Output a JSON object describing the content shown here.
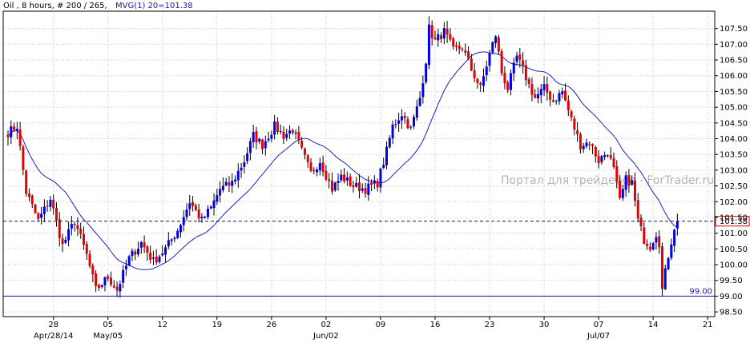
{
  "header": {
    "info": "Oil , 8 hours, # 200 / 265,",
    "mvg": "MVG(1) 20=101.38"
  },
  "watermark": "Портал для трейдеров - ForTrader.ru",
  "colors": {
    "up": "#0000e6",
    "down": "#e60000",
    "wick": "#000000",
    "ma": "#2020c0",
    "grid": "#c8c8c8",
    "current_label_border": "#e60000",
    "level_line": "#1a1aa6"
  },
  "chart_data": {
    "type": "candlestick",
    "y_ticks": [
      "98.50",
      "99.00",
      "99.50",
      "100.00",
      "100.50",
      "101.00",
      "101.50",
      "102.00",
      "102.50",
      "103.00",
      "103.50",
      "104.00",
      "104.50",
      "105.00",
      "105.50",
      "106.00",
      "106.50",
      "107.00",
      "107.50"
    ],
    "ylim": [
      98.35,
      108.05
    ],
    "x_ticks": [
      {
        "label": "28",
        "bar": 15
      },
      {
        "label": "05",
        "bar": 33
      },
      {
        "label": "12",
        "bar": 51
      },
      {
        "label": "19",
        "bar": 69
      },
      {
        "label": "26",
        "bar": 87
      },
      {
        "label": "02",
        "bar": 105
      },
      {
        "label": "09",
        "bar": 123
      },
      {
        "label": "16",
        "bar": 141
      },
      {
        "label": "23",
        "bar": 159
      },
      {
        "label": "30",
        "bar": 177
      },
      {
        "label": "07",
        "bar": 195
      },
      {
        "label": "14",
        "bar": 213
      },
      {
        "label": "21",
        "bar": 231
      }
    ],
    "x_months": [
      {
        "label": "Apr/28/14",
        "bar": 15
      },
      {
        "label": "May/05",
        "bar": 33
      },
      {
        "label": "Jun/02",
        "bar": 105
      },
      {
        "label": "Jul/07",
        "bar": 195
      }
    ],
    "bar_count": 233,
    "current_value": "101.38",
    "horizontal_level": {
      "value": 99.0,
      "label": "99.00"
    },
    "ma_period": 20,
    "waypoints": [
      [
        0,
        104.2
      ],
      [
        3,
        104.4
      ],
      [
        6,
        102.3
      ],
      [
        10,
        101.4
      ],
      [
        14,
        102.1
      ],
      [
        18,
        100.6
      ],
      [
        22,
        101.4
      ],
      [
        26,
        100.3
      ],
      [
        29,
        99.2
      ],
      [
        33,
        99.6
      ],
      [
        36,
        99.2
      ],
      [
        40,
        100.2
      ],
      [
        44,
        100.7
      ],
      [
        48,
        100.1
      ],
      [
        52,
        100.5
      ],
      [
        56,
        101.1
      ],
      [
        60,
        102.0
      ],
      [
        64,
        101.4
      ],
      [
        67,
        101.8
      ],
      [
        70,
        102.4
      ],
      [
        74,
        102.6
      ],
      [
        78,
        103.3
      ],
      [
        81,
        104.1
      ],
      [
        84,
        103.8
      ],
      [
        88,
        104.4
      ],
      [
        91,
        104.1
      ],
      [
        94,
        104.3
      ],
      [
        97,
        103.6
      ],
      [
        100,
        102.9
      ],
      [
        103,
        103.3
      ],
      [
        107,
        102.4
      ],
      [
        110,
        102.8
      ],
      [
        114,
        102.5
      ],
      [
        118,
        102.4
      ],
      [
        122,
        102.6
      ],
      [
        125,
        103.6
      ],
      [
        127,
        104.4
      ],
      [
        130,
        104.8
      ],
      [
        133,
        104.3
      ],
      [
        136,
        105.3
      ],
      [
        138,
        106.5
      ],
      [
        139,
        107.5
      ],
      [
        141,
        107.1
      ],
      [
        144,
        107.4
      ],
      [
        147,
        106.8
      ],
      [
        150,
        106.9
      ],
      [
        153,
        106.2
      ],
      [
        156,
        105.6
      ],
      [
        159,
        106.7
      ],
      [
        161,
        107.3
      ],
      [
        163,
        106.1
      ],
      [
        165,
        105.6
      ],
      [
        168,
        106.6
      ],
      [
        170,
        106.2
      ],
      [
        172,
        105.7
      ],
      [
        174,
        105.3
      ],
      [
        177,
        105.6
      ],
      [
        180,
        105.2
      ],
      [
        183,
        105.5
      ],
      [
        186,
        104.6
      ],
      [
        189,
        103.8
      ],
      [
        192,
        103.9
      ],
      [
        195,
        103.3
      ],
      [
        198,
        103.6
      ],
      [
        200,
        103.0
      ],
      [
        202,
        102.0
      ],
      [
        204,
        102.7
      ],
      [
        206,
        102.6
      ],
      [
        208,
        101.4
      ],
      [
        210,
        100.8
      ],
      [
        212,
        100.6
      ],
      [
        214,
        101.0
      ],
      [
        215,
        100.7
      ],
      [
        216,
        99.2
      ],
      [
        218,
        100.3
      ],
      [
        220,
        101.2
      ],
      [
        221,
        101.4
      ]
    ]
  }
}
